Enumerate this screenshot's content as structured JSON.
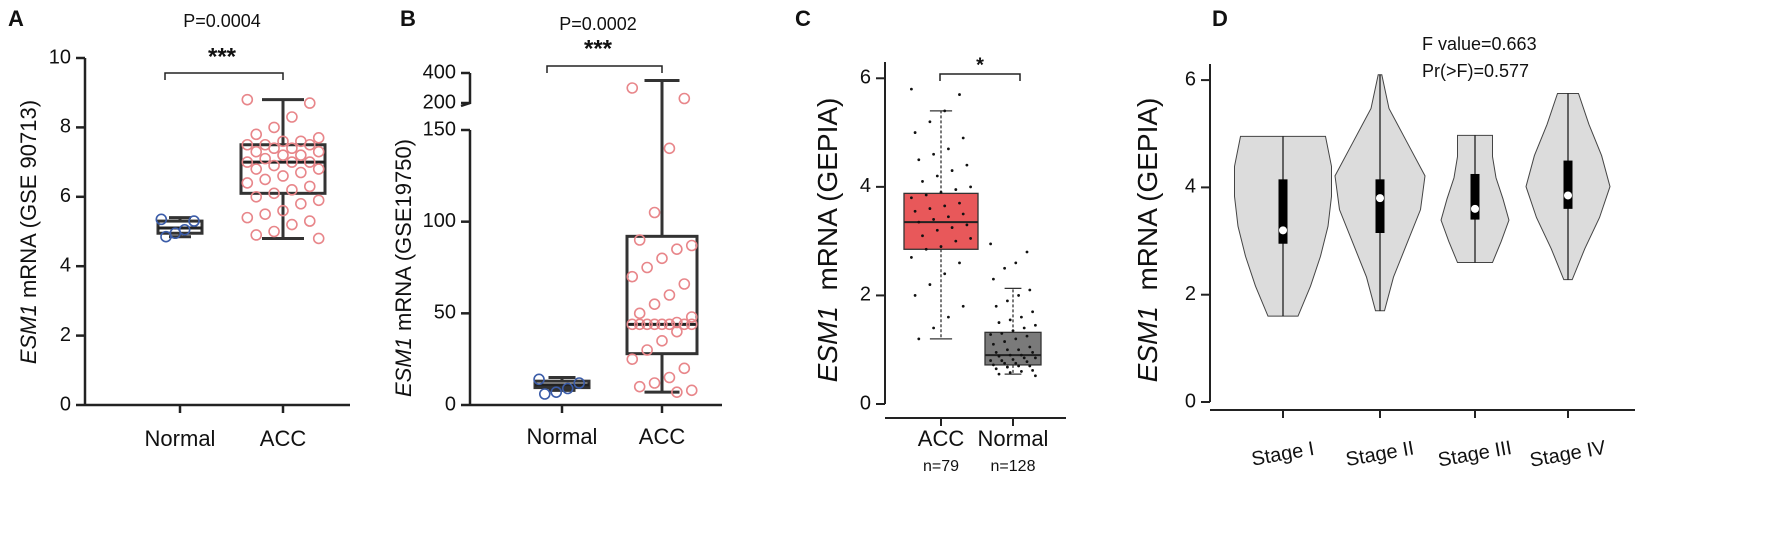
{
  "chart_data": [
    {
      "panel": "A",
      "type": "box",
      "ylabel_gene": "ESM1",
      "ylabel": "mRNA (GSE 90713)",
      "annotation": "P=0.0004",
      "significance": "***",
      "ylim": [
        0,
        10
      ],
      "yticks": [
        0,
        2,
        4,
        6,
        8,
        10
      ],
      "series": [
        {
          "name": "Normal",
          "color": "#3b5ca8",
          "min": 4.85,
          "q1": 4.95,
          "median": 5.1,
          "q3": 5.3,
          "max": 5.4,
          "points": [
            5.35,
            5.3,
            5.05,
            4.95,
            4.85
          ]
        },
        {
          "name": "ACC",
          "color": "#e8868a",
          "min": 4.8,
          "q1": 6.1,
          "median": 7.0,
          "q3": 7.5,
          "max": 8.8,
          "points": [
            8.8,
            8.7,
            8.3,
            8.0,
            7.8,
            7.7,
            7.6,
            7.6,
            7.5,
            7.5,
            7.5,
            7.4,
            7.4,
            7.3,
            7.3,
            7.2,
            7.2,
            7.1,
            7.0,
            7.0,
            7.0,
            6.9,
            6.8,
            6.8,
            6.7,
            6.6,
            6.5,
            6.4,
            6.3,
            6.2,
            6.1,
            6.0,
            5.9,
            5.8,
            5.6,
            5.5,
            5.4,
            5.3,
            5.2,
            5.0,
            4.9,
            4.8
          ]
        }
      ]
    },
    {
      "panel": "B",
      "type": "box",
      "ylabel_gene": "ESM1",
      "ylabel": "mRNA (GSE19750)",
      "annotation": "P=0.0002",
      "significance": "***",
      "ylim": [
        0,
        400
      ],
      "ybreak": [
        150,
        200
      ],
      "yticks": [
        0,
        50,
        100,
        150,
        200,
        400
      ],
      "series": [
        {
          "name": "Normal",
          "color": "#3b5ca8",
          "min": 8,
          "q1": 9.5,
          "median": 11,
          "q3": 13,
          "max": 15,
          "points": [
            14,
            12,
            9,
            7,
            6
          ]
        },
        {
          "name": "ACC",
          "color": "#e8868a",
          "min": 7,
          "q1": 28,
          "median": 44,
          "q3": 92,
          "max": 350,
          "points": [
            300,
            230,
            140,
            105,
            90,
            87,
            85,
            80,
            75,
            70,
            66,
            60,
            55,
            50,
            48,
            45,
            44,
            44,
            44,
            44,
            44,
            44,
            44,
            44,
            40,
            35,
            30,
            25,
            20,
            15,
            12,
            10,
            8,
            7
          ]
        }
      ]
    },
    {
      "panel": "C",
      "type": "box",
      "ylabel_gene": "ESM1",
      "ylabel": "mRNA (GEPIA)",
      "significance": "*",
      "ylim": [
        0,
        6.3
      ],
      "yticks": [
        0,
        2,
        4,
        6
      ],
      "series": [
        {
          "name": "ACC",
          "n_label": "n=79",
          "box_color": "#e8585a",
          "color": "#111111",
          "min": 1.2,
          "q1": 2.85,
          "median": 3.35,
          "q3": 3.88,
          "max": 5.4,
          "points": [
            5.8,
            5.7,
            5.4,
            5.2,
            5.0,
            4.9,
            4.7,
            4.6,
            4.5,
            4.4,
            4.3,
            4.2,
            4.1,
            4.0,
            3.95,
            3.9,
            3.85,
            3.8,
            3.7,
            3.65,
            3.6,
            3.55,
            3.5,
            3.45,
            3.4,
            3.35,
            3.3,
            3.25,
            3.2,
            3.1,
            3.05,
            3.0,
            2.9,
            2.85,
            2.7,
            2.6,
            2.4,
            2.2,
            2.0,
            1.8,
            1.6,
            1.4,
            1.2
          ]
        },
        {
          "name": "Normal",
          "n_label": "n=128",
          "box_color": "#7a7a7a",
          "color": "#111111",
          "min": 0.55,
          "q1": 0.72,
          "median": 0.9,
          "q3": 1.32,
          "max": 2.13,
          "points": [
            2.95,
            2.8,
            2.6,
            2.5,
            2.3,
            2.1,
            2.0,
            1.9,
            1.8,
            1.7,
            1.6,
            1.55,
            1.5,
            1.45,
            1.4,
            1.35,
            1.3,
            1.28,
            1.25,
            1.2,
            1.15,
            1.1,
            1.05,
            1.0,
            1.0,
            0.95,
            0.95,
            0.9,
            0.9,
            0.88,
            0.85,
            0.85,
            0.82,
            0.8,
            0.8,
            0.78,
            0.75,
            0.75,
            0.72,
            0.7,
            0.7,
            0.68,
            0.65,
            0.62,
            0.6,
            0.58,
            0.55,
            0.52
          ]
        }
      ]
    },
    {
      "panel": "D",
      "type": "violin",
      "ylabel_gene": "ESM1",
      "ylabel": "mRNA (GEPIA)",
      "annotations": [
        "F value=0.663",
        "Pr(>F)=0.577"
      ],
      "ylim": [
        0,
        6.3
      ],
      "yticks": [
        0,
        2,
        4,
        6
      ],
      "color": "#dcdcdc",
      "series": [
        {
          "name": "Stage I",
          "min": 1.6,
          "q1": 2.95,
          "median": 3.2,
          "q3": 4.15,
          "max": 4.95,
          "profile": [
            0.3,
            0.55,
            0.75,
            0.9,
            0.97,
            0.97,
            0.85
          ]
        },
        {
          "name": "Stage II",
          "min": 1.7,
          "q1": 3.15,
          "median": 3.8,
          "q3": 4.15,
          "max": 6.1,
          "profile": [
            0.1,
            0.3,
            0.6,
            0.9,
            1.0,
            0.6,
            0.2,
            0.04
          ]
        },
        {
          "name": "Stage III",
          "min": 2.6,
          "q1": 3.4,
          "median": 3.6,
          "q3": 4.25,
          "max": 4.97,
          "profile": [
            0.5,
            0.75,
            0.97,
            0.8,
            0.6,
            0.5,
            0.5
          ]
        },
        {
          "name": "Stage IV",
          "min": 2.28,
          "q1": 3.6,
          "median": 3.85,
          "q3": 4.5,
          "max": 5.75,
          "profile": [
            0.1,
            0.4,
            0.75,
            1.0,
            0.8,
            0.5,
            0.25
          ]
        }
      ]
    }
  ]
}
